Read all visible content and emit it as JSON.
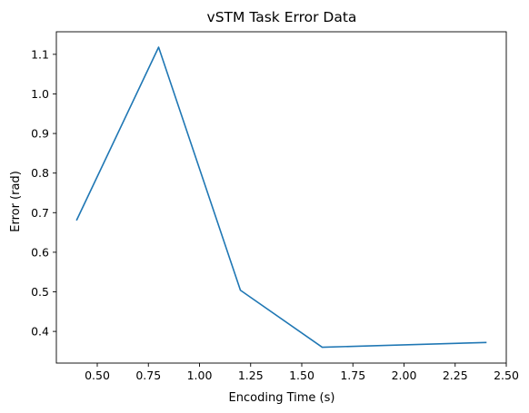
{
  "chart_data": {
    "type": "line",
    "title": "vSTM Task Error Data",
    "xlabel": "Encoding Time (s)",
    "ylabel": "Error (rad)",
    "xlim": [
      0.3,
      2.5
    ],
    "ylim": [
      0.32,
      1.157
    ],
    "xticks": [
      0.5,
      0.75,
      1.0,
      1.25,
      1.5,
      1.75,
      2.0,
      2.25,
      2.5
    ],
    "xtick_labels": [
      "0.50",
      "0.75",
      "1.00",
      "1.25",
      "1.50",
      "1.75",
      "2.00",
      "2.25",
      "2.50"
    ],
    "yticks": [
      0.4,
      0.5,
      0.6,
      0.7,
      0.8,
      0.9,
      1.0,
      1.1
    ],
    "ytick_labels": [
      "0.4",
      "0.5",
      "0.6",
      "0.7",
      "0.8",
      "0.9",
      "1.0",
      "1.1"
    ],
    "grid": false,
    "series": [
      {
        "color": "#1f77b4",
        "x": [
          0.4,
          0.8,
          1.2,
          1.6,
          2.4
        ],
        "y": [
          0.682,
          1.118,
          0.504,
          0.36,
          0.372
        ]
      }
    ]
  }
}
